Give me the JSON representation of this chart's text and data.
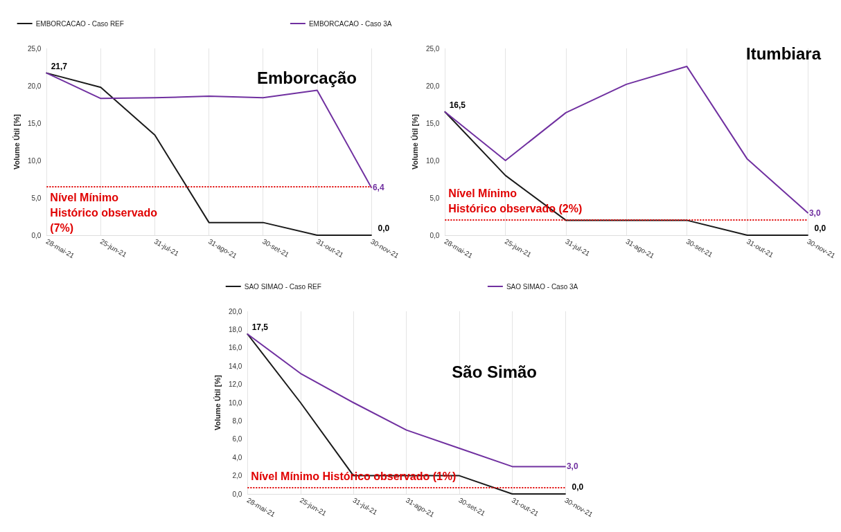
{
  "chart_data": [
    {
      "type": "line",
      "title": "Emborcação",
      "ylabel": "Volume Útil [%]",
      "categories": [
        "28-mai-21",
        "25-jun-21",
        "31-jul-21",
        "31-ago-21",
        "30-set-21",
        "31-out-21",
        "30-nov-21"
      ],
      "series": [
        {
          "name": "EMBORCACAO - Caso REF",
          "color": "#1a1a1a",
          "values": [
            21.7,
            19.8,
            13.4,
            1.7,
            1.7,
            0,
            0
          ],
          "value_labels": [
            "21,7",
            null,
            null,
            null,
            null,
            null,
            "0,0"
          ]
        },
        {
          "name": "EMBORCACAO - Caso 3A",
          "color": "#7030a0",
          "values": [
            21.7,
            18.3,
            18.4,
            18.6,
            18.4,
            19.4,
            6.4
          ],
          "value_labels": [
            null,
            null,
            null,
            null,
            null,
            null,
            "6,4"
          ]
        }
      ],
      "ylim": [
        0,
        25
      ],
      "yticks": [
        {
          "value": 0,
          "label": "0,0"
        },
        {
          "value": 5,
          "label": "5,0"
        },
        {
          "value": 10,
          "label": "10,0"
        },
        {
          "value": 15,
          "label": "15,0"
        },
        {
          "value": 20,
          "label": "20,0"
        },
        {
          "value": 25,
          "label": "25,0"
        }
      ],
      "ref_lines": [
        {
          "axis": "y",
          "value": 6.5,
          "label": "Nível Mínimo Histórico observado (7%)",
          "color": "#e00000",
          "line_style": "dotted"
        }
      ],
      "grid": "x",
      "legend": "top",
      "marker": "none",
      "line_style": "solid"
    },
    {
      "type": "line",
      "title": "Itumbiara",
      "ylabel": "Volume Útil [%]",
      "categories": [
        "28-mai-21",
        "25-jun-21",
        "31-jul-21",
        "31-ago-21",
        "30-set-21",
        "31-out-21",
        "30-nov-21"
      ],
      "series": [
        {
          "color": "#1a1a1a",
          "values": [
            16.5,
            8.0,
            2.0,
            2.0,
            2.0,
            0,
            0
          ],
          "value_labels": [
            "16,5",
            null,
            null,
            null,
            null,
            null,
            "0,0"
          ]
        },
        {
          "color": "#7030a0",
          "values": [
            16.5,
            10.0,
            16.4,
            20.2,
            22.6,
            10.2,
            3.0
          ],
          "value_labels": [
            null,
            null,
            null,
            null,
            null,
            null,
            "3,0"
          ]
        }
      ],
      "ylim": [
        0,
        25
      ],
      "yticks": [
        {
          "value": 0,
          "label": "0,0"
        },
        {
          "value": 5,
          "label": "5,0"
        },
        {
          "value": 10,
          "label": "10,0"
        },
        {
          "value": 15,
          "label": "15,0"
        },
        {
          "value": 20,
          "label": "20,0"
        },
        {
          "value": 25,
          "label": "25,0"
        }
      ],
      "ref_lines": [
        {
          "axis": "y",
          "value": 2.1,
          "label": "Nível Mínimo Histórico observado (2%)",
          "color": "#e00000",
          "line_style": "dotted"
        }
      ],
      "grid": "x",
      "legend": false,
      "marker": "none",
      "line_style": "solid"
    },
    {
      "type": "line",
      "title": "São Simão",
      "ylabel": "Volume Útil [%]",
      "categories": [
        "28-mai-21",
        "25-jun-21",
        "31-jul-21",
        "31-ago-21",
        "30-set-21",
        "31-out-21",
        "30-nov-21"
      ],
      "series": [
        {
          "name": "SAO SIMAO - Caso REF",
          "color": "#1a1a1a",
          "values": [
            17.5,
            10.0,
            2.0,
            2.0,
            2.0,
            0,
            0
          ],
          "value_labels": [
            "17,5",
            null,
            null,
            null,
            null,
            null,
            "0,0"
          ]
        },
        {
          "name": "SAO SIMAO - Caso 3A",
          "color": "#7030a0",
          "values": [
            17.5,
            13.2,
            10.0,
            7.0,
            5.0,
            3.0,
            3.0
          ],
          "value_labels": [
            null,
            null,
            null,
            null,
            null,
            null,
            "3,0"
          ]
        }
      ],
      "ylim": [
        0,
        20
      ],
      "yticks": [
        {
          "value": 0,
          "label": "0,0"
        },
        {
          "value": 2,
          "label": "2,0"
        },
        {
          "value": 4,
          "label": "4,0"
        },
        {
          "value": 6,
          "label": "6,0"
        },
        {
          "value": 8,
          "label": "8,0"
        },
        {
          "value": 10,
          "label": "10,0"
        },
        {
          "value": 12,
          "label": "12,0"
        },
        {
          "value": 14,
          "label": "14,0"
        },
        {
          "value": 16,
          "label": "16,0"
        },
        {
          "value": 18,
          "label": "18,0"
        },
        {
          "value": 20,
          "label": "20,0"
        }
      ],
      "ref_lines": [
        {
          "axis": "y",
          "value": 0.7,
          "label": "Nível Mínimo Histórico observado (1%)",
          "color": "#e00000",
          "line_style": "dotted"
        }
      ],
      "grid": "x",
      "legend": "top",
      "marker": "none",
      "line_style": "solid"
    }
  ]
}
